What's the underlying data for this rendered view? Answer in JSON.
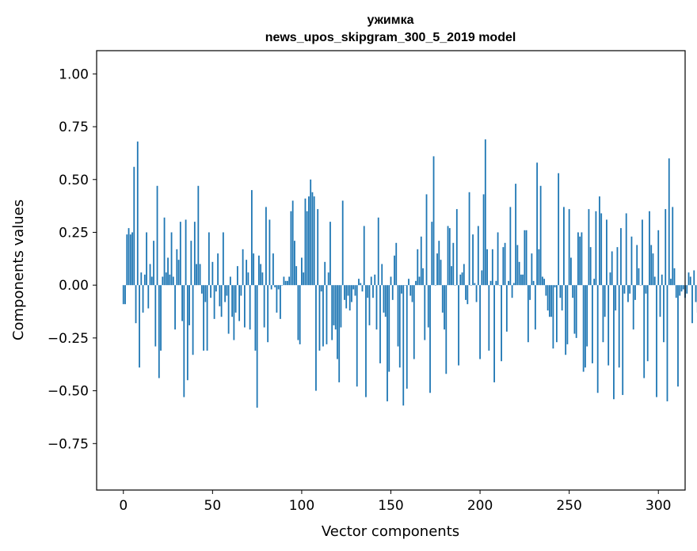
{
  "chart_data": {
    "type": "bar",
    "title": "ужимка",
    "subtitle": "news_upos_skipgram_300_5_2019 model",
    "xlabel": "Vector components",
    "ylabel": "Components values",
    "xlim": [
      -15,
      315
    ],
    "ylim": [
      -0.97,
      1.11
    ],
    "xticks": [
      0,
      50,
      100,
      150,
      200,
      250,
      300
    ],
    "xtick_labels": [
      "0",
      "50",
      "100",
      "150",
      "200",
      "250",
      "300"
    ],
    "yticks": [
      1.0,
      0.75,
      0.5,
      0.25,
      0.0,
      -0.25,
      -0.5,
      -0.75
    ],
    "ytick_labels": [
      "1.00",
      "0.75",
      "0.50",
      "0.25",
      "0.00",
      "−0.25",
      "−0.50",
      "−0.75"
    ],
    "bar_color": "#1f77b4",
    "values": [
      -0.09,
      -0.09,
      0.24,
      0.27,
      0.24,
      0.25,
      0.56,
      -0.18,
      0.68,
      -0.39,
      0.06,
      -0.13,
      0.05,
      0.25,
      -0.11,
      0.1,
      0.04,
      0.21,
      -0.29,
      0.47,
      -0.44,
      -0.31,
      0.04,
      0.32,
      0.06,
      0.13,
      0.05,
      0.25,
      0.04,
      -0.21,
      0.17,
      0.12,
      0.3,
      -0.17,
      -0.53,
      0.31,
      -0.45,
      -0.19,
      0.21,
      -0.33,
      0.3,
      0.1,
      0.47,
      0.1,
      -0.04,
      -0.31,
      -0.08,
      -0.31,
      0.25,
      -0.06,
      0.11,
      -0.16,
      -0.03,
      0.15,
      -0.1,
      -0.15,
      0.25,
      -0.08,
      -0.05,
      -0.23,
      0.04,
      -0.15,
      -0.26,
      -0.13,
      0.09,
      -0.17,
      -0.05,
      0.17,
      -0.2,
      0.12,
      0.06,
      -0.21,
      0.45,
      0.15,
      -0.31,
      -0.58,
      0.14,
      0.1,
      0.06,
      -0.2,
      0.37,
      -0.27,
      0.31,
      -0.02,
      0.15,
      -0.01,
      -0.13,
      -0.02,
      -0.16,
      0.0,
      0.04,
      0.02,
      0.02,
      0.04,
      0.35,
      0.4,
      0.21,
      0.09,
      -0.26,
      -0.28,
      0.13,
      0.06,
      0.41,
      0.35,
      0.42,
      0.5,
      0.44,
      0.42,
      -0.5,
      0.36,
      -0.31,
      -0.03,
      -0.29,
      0.11,
      -0.28,
      0.06,
      0.3,
      -0.26,
      -0.19,
      -0.21,
      -0.35,
      -0.46,
      -0.2,
      0.4,
      -0.07,
      -0.11,
      -0.05,
      -0.12,
      -0.08,
      -0.02,
      -0.05,
      -0.48,
      0.03,
      0.01,
      -0.03,
      0.28,
      -0.53,
      -0.06,
      -0.19,
      0.04,
      -0.06,
      0.05,
      -0.21,
      0.32,
      -0.37,
      0.1,
      -0.13,
      -0.15,
      -0.55,
      -0.41,
      0.04,
      -0.07,
      0.14,
      0.2,
      -0.29,
      -0.39,
      -0.04,
      -0.57,
      0.0,
      -0.49,
      0.03,
      -0.05,
      -0.08,
      -0.35,
      0.02,
      0.17,
      0.04,
      0.23,
      0.08,
      -0.26,
      0.43,
      -0.2,
      -0.51,
      0.3,
      0.61,
      0.0,
      0.15,
      0.21,
      0.12,
      -0.13,
      -0.21,
      -0.42,
      0.28,
      0.27,
      0.09,
      0.2,
      0.0,
      0.36,
      -0.38,
      0.05,
      0.06,
      0.1,
      -0.07,
      -0.09,
      0.44,
      0.0,
      0.24,
      0.01,
      -0.08,
      0.28,
      -0.35,
      0.07,
      0.43,
      0.69,
      0.17,
      -0.31,
      0.02,
      0.17,
      -0.46,
      0.02,
      0.25,
      0.0,
      -0.36,
      0.18,
      0.2,
      -0.22,
      0.02,
      0.37,
      -0.06,
      0.01,
      0.48,
      0.19,
      0.11,
      0.05,
      0.05,
      0.26,
      0.26,
      -0.27,
      -0.07,
      0.15,
      0.02,
      -0.21,
      0.58,
      0.17,
      0.47,
      0.04,
      0.03,
      -0.05,
      -0.12,
      -0.15,
      -0.15,
      -0.3,
      -0.01,
      -0.27,
      0.53,
      -0.06,
      -0.12,
      0.37,
      -0.33,
      -0.28,
      0.36,
      0.13,
      -0.06,
      -0.23,
      -0.25,
      0.25,
      0.23,
      0.25,
      -0.41,
      -0.39,
      -0.29,
      0.36,
      0.18,
      -0.37,
      0.03,
      0.35,
      -0.51,
      0.42,
      0.34,
      -0.27,
      -0.15,
      0.31,
      -0.38,
      0.06,
      0.16,
      -0.54,
      -0.12,
      0.18,
      -0.39,
      0.27,
      -0.52,
      -0.04,
      0.34,
      -0.08,
      -0.04,
      0.23,
      -0.21,
      -0.07,
      0.19,
      0.08,
      0.0,
      0.31,
      -0.44,
      -0.04,
      -0.36,
      0.35,
      0.19,
      0.15,
      0.04,
      -0.53,
      0.26,
      -0.15,
      0.05,
      -0.27,
      0.36,
      -0.55,
      0.6,
      0.03,
      0.37,
      0.08,
      -0.06,
      -0.48,
      -0.05,
      -0.03,
      -0.02,
      -0.06,
      -0.04,
      0.06,
      0.04,
      -0.18,
      0.07,
      -0.08,
      -0.13
    ]
  }
}
